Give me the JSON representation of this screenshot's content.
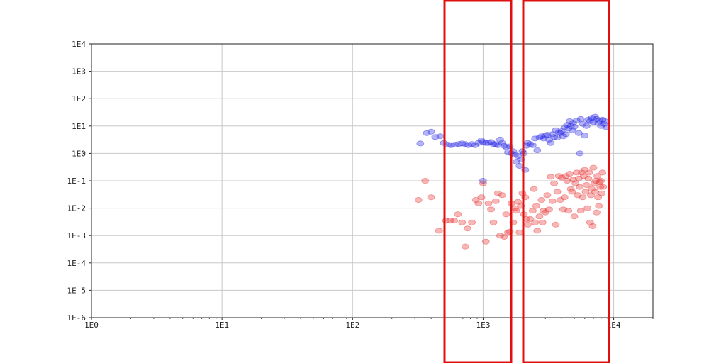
{
  "chart_data": {
    "type": "scatter",
    "title": "",
    "xlabel": "",
    "ylabel": "",
    "x_scale": "log",
    "y_scale": "log",
    "xlim": [
      1,
      20000
    ],
    "ylim": [
      1e-06,
      10000
    ],
    "grid": true,
    "x_ticks": [
      {
        "value": 1,
        "label": "1E0"
      },
      {
        "value": 10,
        "label": "1E1"
      },
      {
        "value": 100,
        "label": "1E2"
      },
      {
        "value": 1000,
        "label": "1E3"
      },
      {
        "value": 10000,
        "label": "1E4"
      }
    ],
    "y_ticks": [
      {
        "value": 1e-06,
        "label": "1E-6"
      },
      {
        "value": 1e-05,
        "label": "1E-5"
      },
      {
        "value": 0.0001,
        "label": "1E-4"
      },
      {
        "value": 0.001,
        "label": "1E-3"
      },
      {
        "value": 0.01,
        "label": "1E-2"
      },
      {
        "value": 0.1,
        "label": "1E-1"
      },
      {
        "value": 1,
        "label": "1E0"
      },
      {
        "value": 10,
        "label": "1E1"
      },
      {
        "value": 100,
        "label": "1E2"
      },
      {
        "value": 1000,
        "label": "1E3"
      },
      {
        "value": 10000,
        "label": "1E4"
      }
    ],
    "series": [
      {
        "color": "#2a2ae6",
        "points": [
          [
            330,
            2.3
          ],
          [
            370,
            5.5
          ],
          [
            400,
            6.2
          ],
          [
            430,
            4.0
          ],
          [
            470,
            4.2
          ],
          [
            500,
            2.4
          ],
          [
            540,
            2.1
          ],
          [
            570,
            2.0
          ],
          [
            610,
            2.1
          ],
          [
            650,
            2.2
          ],
          [
            690,
            2.3
          ],
          [
            730,
            2.2
          ],
          [
            770,
            2.0
          ],
          [
            820,
            2.2
          ],
          [
            870,
            2.0
          ],
          [
            920,
            2.4
          ],
          [
            970,
            3.0
          ],
          [
            1000,
            2.6
          ],
          [
            1050,
            2.4
          ],
          [
            1100,
            2.4
          ],
          [
            1150,
            2.6
          ],
          [
            1200,
            2.2
          ],
          [
            1250,
            2.2
          ],
          [
            1300,
            2.0
          ],
          [
            1350,
            3.2
          ],
          [
            1400,
            2.4
          ],
          [
            1450,
            1.9
          ],
          [
            1500,
            1.7
          ],
          [
            1550,
            1.1
          ],
          [
            1600,
            1.8
          ],
          [
            1650,
            1.0
          ],
          [
            1700,
            1.2
          ],
          [
            1750,
            0.9
          ],
          [
            1800,
            0.5
          ],
          [
            1850,
            0.8
          ],
          [
            1900,
            0.35
          ],
          [
            1950,
            0.6
          ],
          [
            2000,
            1.2
          ],
          [
            2050,
            1.0
          ],
          [
            2100,
            0.25
          ],
          [
            2150,
            1.9
          ],
          [
            2200,
            2.4
          ],
          [
            2300,
            2.2
          ],
          [
            2400,
            2.0
          ],
          [
            2500,
            3.5
          ],
          [
            2600,
            1.3
          ],
          [
            2700,
            3.8
          ],
          [
            2800,
            4.2
          ],
          [
            2900,
            3.5
          ],
          [
            3000,
            4.5
          ],
          [
            3100,
            4.8
          ],
          [
            3200,
            3.2
          ],
          [
            3300,
            2.4
          ],
          [
            3400,
            5.0
          ],
          [
            3500,
            4.0
          ],
          [
            3600,
            7.0
          ],
          [
            3700,
            3.8
          ],
          [
            3800,
            6.0
          ],
          [
            3900,
            5.5
          ],
          [
            4000,
            6.5
          ],
          [
            4100,
            4.2
          ],
          [
            4200,
            9.0
          ],
          [
            4300,
            5.0
          ],
          [
            4400,
            11
          ],
          [
            4500,
            8.0
          ],
          [
            4600,
            15
          ],
          [
            4700,
            10
          ],
          [
            4800,
            7.0
          ],
          [
            4900,
            13
          ],
          [
            5000,
            9.5
          ],
          [
            5200,
            16
          ],
          [
            5400,
            5.5
          ],
          [
            5600,
            18
          ],
          [
            5800,
            12
          ],
          [
            6000,
            4.5
          ],
          [
            6200,
            10
          ],
          [
            6400,
            17
          ],
          [
            6600,
            15
          ],
          [
            6800,
            20
          ],
          [
            7000,
            14
          ],
          [
            7200,
            22
          ],
          [
            7400,
            18
          ],
          [
            7600,
            13
          ],
          [
            7800,
            16
          ],
          [
            8000,
            10
          ],
          [
            8200,
            17
          ],
          [
            8400,
            12
          ],
          [
            8600,
            15
          ],
          [
            8800,
            9.0
          ],
          [
            5500,
            1.0
          ],
          [
            1000,
            0.1
          ]
        ]
      },
      {
        "color": "#e83030",
        "points": [
          [
            320,
            0.02
          ],
          [
            360,
            0.1
          ],
          [
            400,
            0.025
          ],
          [
            460,
            0.0015
          ],
          [
            520,
            0.0035
          ],
          [
            560,
            0.0035
          ],
          [
            600,
            0.0035
          ],
          [
            640,
            0.006
          ],
          [
            690,
            0.003
          ],
          [
            730,
            0.0004
          ],
          [
            760,
            0.0018
          ],
          [
            820,
            0.003
          ],
          [
            880,
            0.02
          ],
          [
            920,
            0.015
          ],
          [
            970,
            0.025
          ],
          [
            1000,
            0.08
          ],
          [
            1050,
            0.0006
          ],
          [
            1100,
            0.015
          ],
          [
            1150,
            0.009
          ],
          [
            1200,
            0.003
          ],
          [
            1250,
            0.018
          ],
          [
            1300,
            0.035
          ],
          [
            1350,
            0.001
          ],
          [
            1400,
            0.03
          ],
          [
            1450,
            0.0009
          ],
          [
            1500,
            0.006
          ],
          [
            1550,
            0.0013
          ],
          [
            1600,
            0.0014
          ],
          [
            1650,
            0.015
          ],
          [
            1700,
            0.003
          ],
          [
            1750,
            0.01
          ],
          [
            1800,
            0.008
          ],
          [
            1850,
            0.017
          ],
          [
            1900,
            0.0013
          ],
          [
            1950,
            0.012
          ],
          [
            2000,
            0.035
          ],
          [
            2050,
            0.006
          ],
          [
            2100,
            0.025
          ],
          [
            2150,
            0.004
          ],
          [
            2200,
            0.0025
          ],
          [
            2300,
            0.004
          ],
          [
            2400,
            0.008
          ],
          [
            2450,
            0.05
          ],
          [
            2500,
            0.003
          ],
          [
            2550,
            0.012
          ],
          [
            2600,
            0.0015
          ],
          [
            2700,
            0.005
          ],
          [
            2800,
            0.02
          ],
          [
            2850,
            0.003
          ],
          [
            2900,
            0.008
          ],
          [
            3000,
            0.007
          ],
          [
            3100,
            0.03
          ],
          [
            3200,
            0.009
          ],
          [
            3300,
            0.14
          ],
          [
            3400,
            0.018
          ],
          [
            3500,
            0.08
          ],
          [
            3600,
            0.0025
          ],
          [
            3700,
            0.04
          ],
          [
            3800,
            0.15
          ],
          [
            3900,
            0.02
          ],
          [
            4000,
            0.13
          ],
          [
            4100,
            0.009
          ],
          [
            4200,
            0.025
          ],
          [
            4300,
            0.15
          ],
          [
            4400,
            0.1
          ],
          [
            4500,
            0.008
          ],
          [
            4600,
            0.18
          ],
          [
            4700,
            0.05
          ],
          [
            4800,
            0.04
          ],
          [
            4900,
            0.11
          ],
          [
            5000,
            0.005
          ],
          [
            5100,
            0.08
          ],
          [
            5200,
            0.2
          ],
          [
            5300,
            0.03
          ],
          [
            5400,
            0.12
          ],
          [
            5500,
            0.06
          ],
          [
            5600,
            0.008
          ],
          [
            5700,
            0.2
          ],
          [
            5800,
            0.025
          ],
          [
            5900,
            0.15
          ],
          [
            6000,
            0.25
          ],
          [
            6100,
            0.04
          ],
          [
            6200,
            0.07
          ],
          [
            6300,
            0.01
          ],
          [
            6400,
            0.12
          ],
          [
            6500,
            0.2
          ],
          [
            6600,
            0.003
          ],
          [
            6700,
            0.03
          ],
          [
            6800,
            0.05
          ],
          [
            6900,
            0.0022
          ],
          [
            7000,
            0.3
          ],
          [
            7100,
            0.08
          ],
          [
            7200,
            0.04
          ],
          [
            7300,
            0.1
          ],
          [
            7400,
            0.007
          ],
          [
            7500,
            0.15
          ],
          [
            7600,
            0.025
          ],
          [
            7700,
            0.012
          ],
          [
            7800,
            0.09
          ],
          [
            7900,
            0.06
          ],
          [
            8000,
            0.1
          ],
          [
            8100,
            0.035
          ],
          [
            8200,
            0.2
          ],
          [
            8300,
            0.06
          ]
        ]
      }
    ]
  },
  "highlight_color": "#e01010"
}
